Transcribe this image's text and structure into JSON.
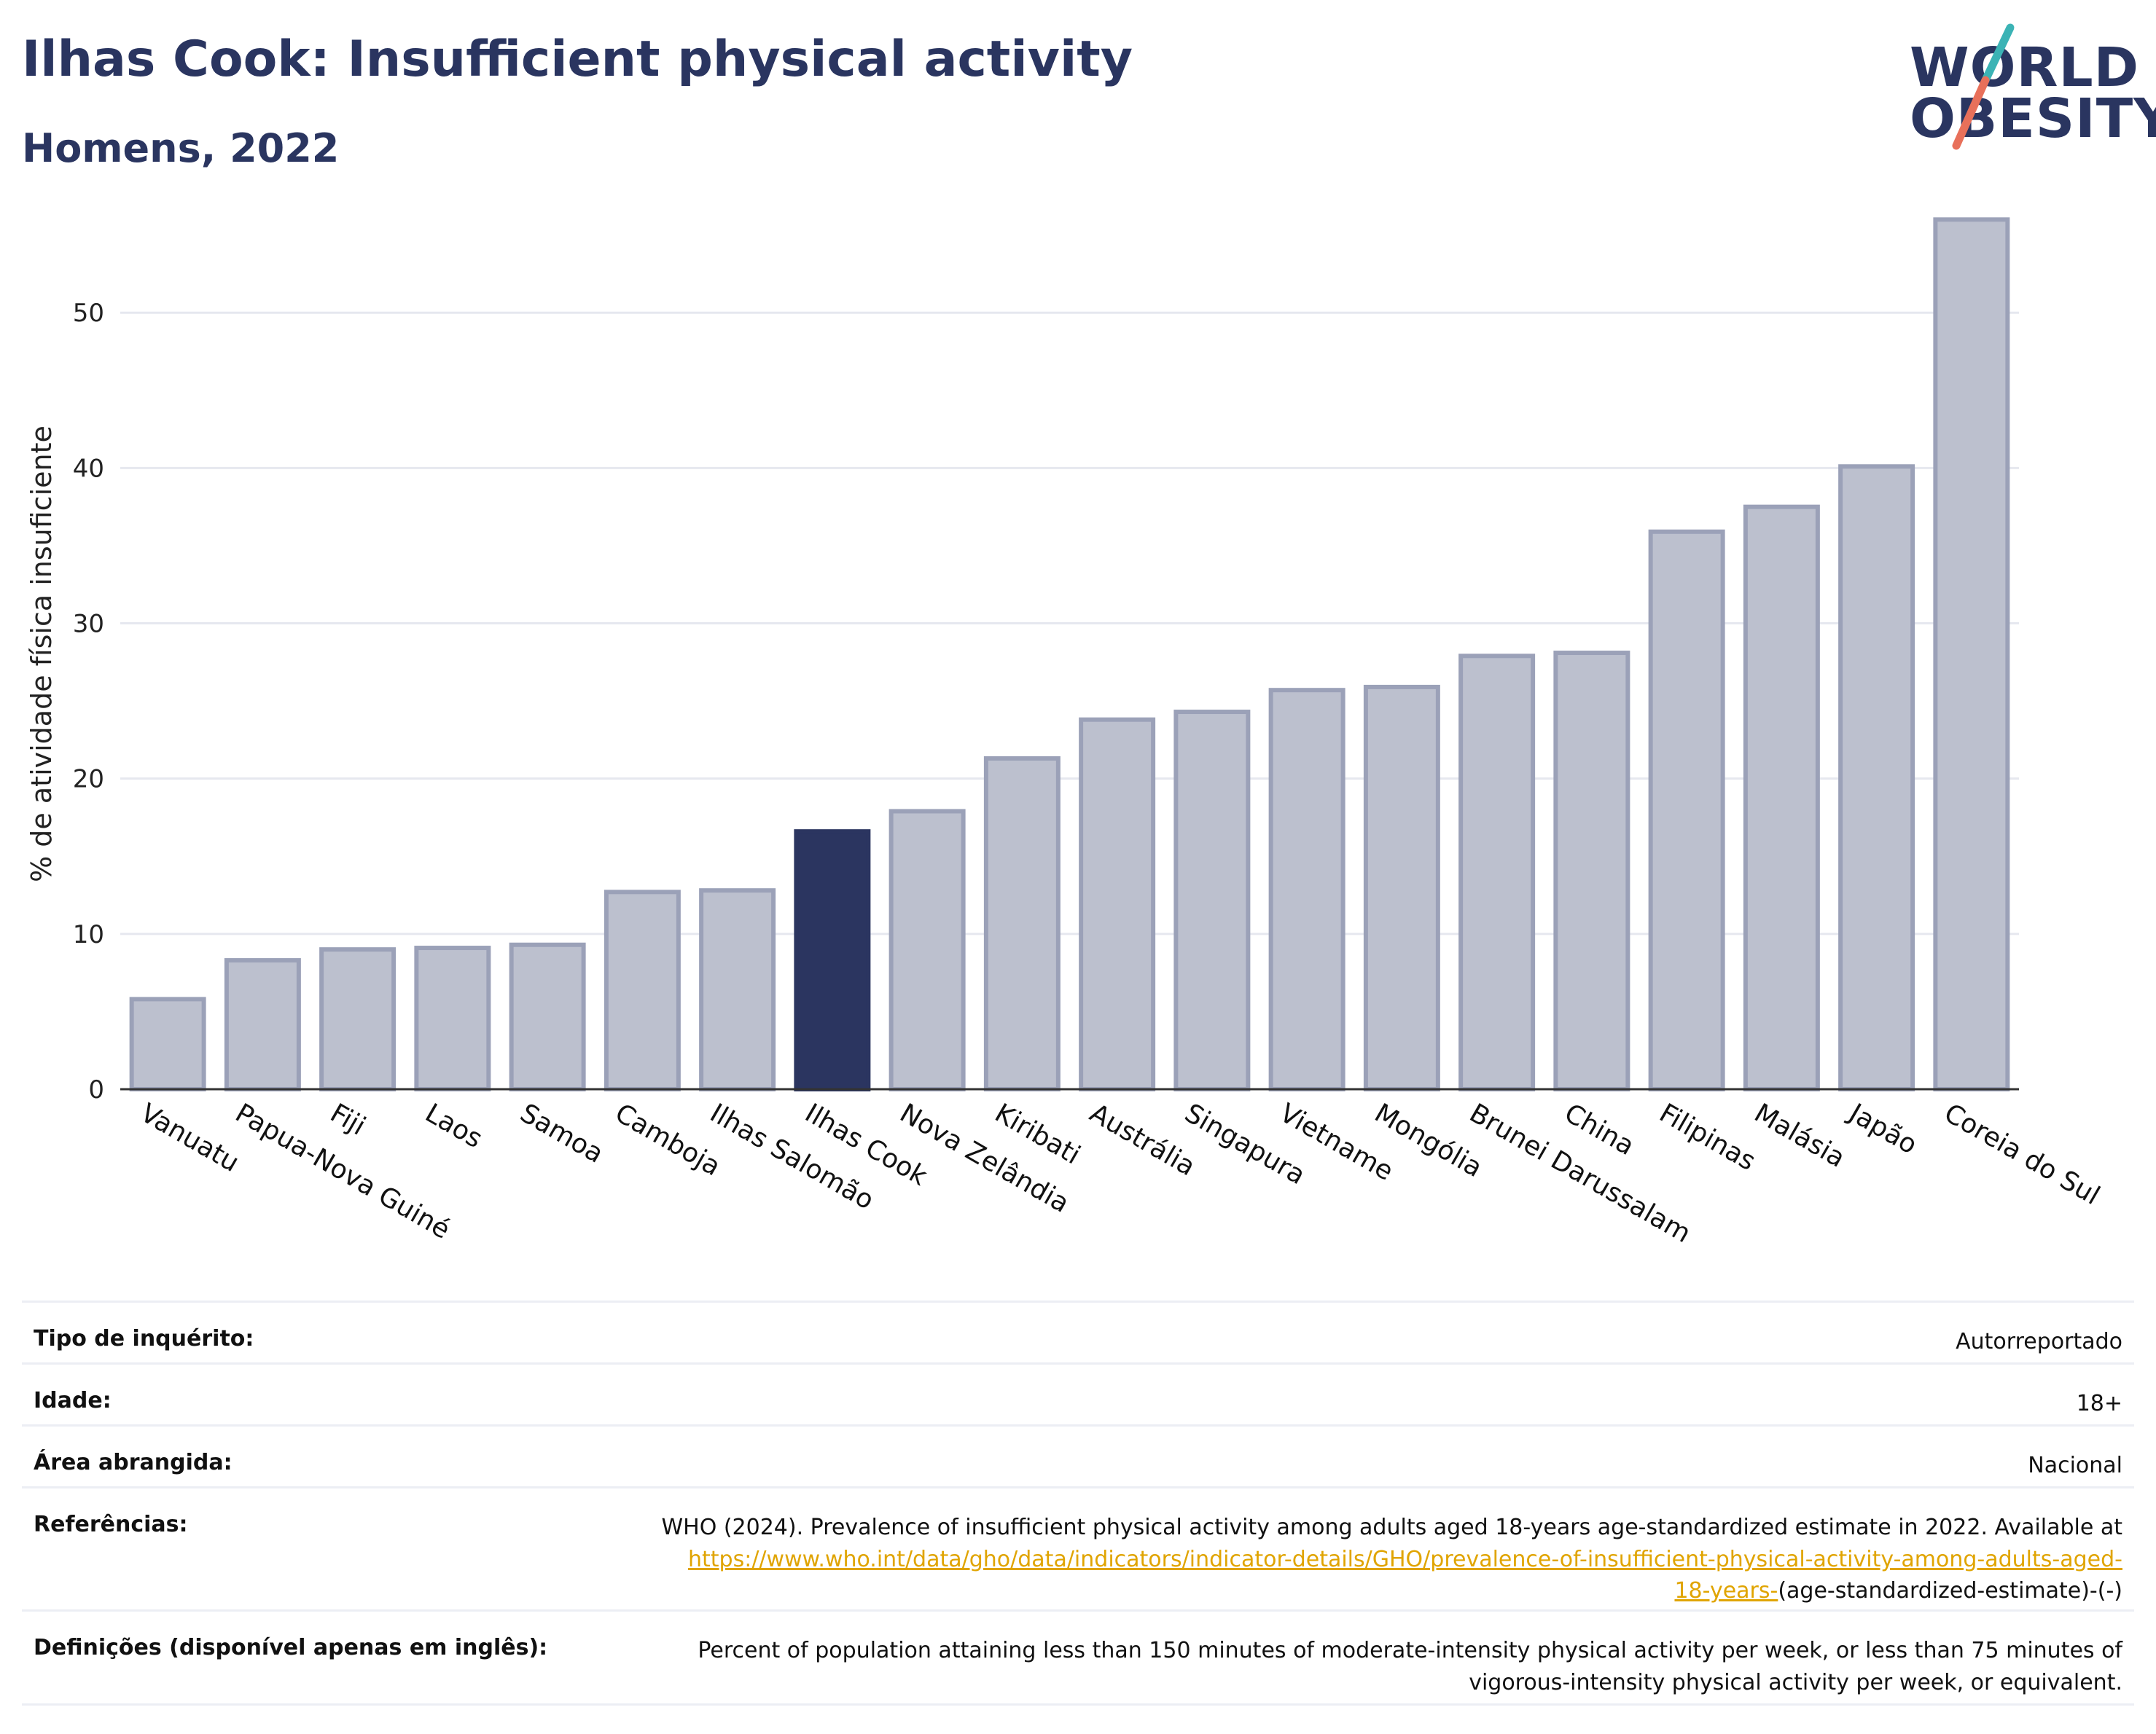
{
  "header": {
    "title": "Ilhas Cook: Insufficient physical activity",
    "subtitle": "Homens, 2022",
    "logo_line1": "WORLD",
    "logo_line2": "OBESITY"
  },
  "colors": {
    "highlight": "#2b3560",
    "bar": "#bcc0ce",
    "bar_border": "#9ba1b8",
    "grid": "#e6e8ef",
    "text": "#2a3560",
    "link": "#e0a400",
    "logo_teal": "#3bb3b5",
    "logo_coral": "#e8705a"
  },
  "chart_data": {
    "type": "bar",
    "title": "Ilhas Cook: Insufficient physical activity",
    "subtitle": "Homens, 2022",
    "xlabel": "",
    "ylabel": "% de atividade física insuficiente",
    "ylim": [
      0,
      57
    ],
    "yticks": [
      0,
      10,
      20,
      30,
      40,
      50
    ],
    "grid": true,
    "highlight": "Ilhas Cook",
    "categories": [
      "Vanuatu",
      "Papua-Nova Guiné",
      "Fiji",
      "Laos",
      "Samoa",
      "Camboja",
      "Ilhas Salomão",
      "Ilhas Cook",
      "Nova Zelândia",
      "Kiribati",
      "Austrália",
      "Singapura",
      "Vietname",
      "Mongólia",
      "Brunei Darussalam",
      "China",
      "Filipinas",
      "Malásia",
      "Japão",
      "Coreia do Sul"
    ],
    "values": [
      5.8,
      8.3,
      9.0,
      9.1,
      9.3,
      12.7,
      12.8,
      16.6,
      17.9,
      21.3,
      23.8,
      24.3,
      25.7,
      25.9,
      27.9,
      28.1,
      35.9,
      37.5,
      40.1,
      56.0
    ]
  },
  "info": {
    "survey_label": "Tipo de inquérito:",
    "survey_value": "Autorreportado",
    "age_label": "Idade:",
    "age_value": "18+",
    "area_label": "Área abrangida:",
    "area_value": "Nacional",
    "ref_label": "Referências:",
    "ref_text": "WHO (2024). Prevalence of insufficient physical activity among adults aged 18-years age-standardized estimate in 2022. Available at",
    "ref_link_1": "https://www.who.int/data/gho/data/indicators/indicator-details/GHO/prevalence-of-insufficient-physical-activity-among-adults-aged-",
    "ref_link_2": "18-years-",
    "ref_suffix": "(age-standardized-estimate)-(-)",
    "def_label": "Definições (disponível apenas em inglês):",
    "def_line1": "Percent of population attaining less than 150 minutes of moderate-intensity physical activity per week, or less than 75 minutes of",
    "def_line2": "vigorous-intensity physical activity per week, or equivalent."
  }
}
